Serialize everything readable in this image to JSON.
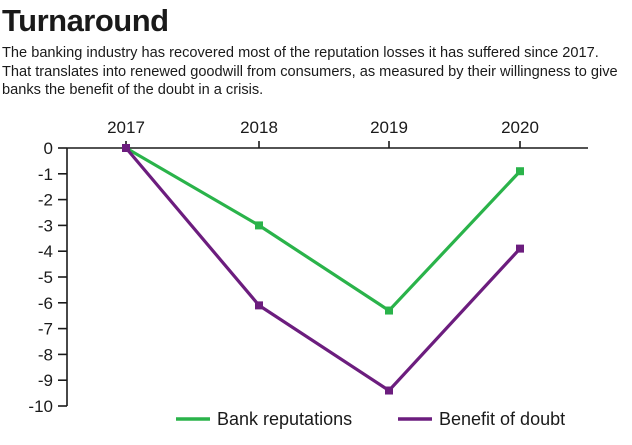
{
  "header": {
    "title": "Turnaround",
    "subtitle": "The banking industry has recovered most of the reputation losses it has suffered since 2017. That translates into renewed goodwill from consumers, as measured by their willingness to give banks the benefit of the doubt in a crisis."
  },
  "chart_data": {
    "type": "line",
    "x": [
      "2017",
      "2018",
      "2019",
      "2020"
    ],
    "x_axis_position": "top",
    "ylim": [
      -10,
      0
    ],
    "y_ticks": [
      0,
      -1,
      -2,
      -3,
      -4,
      -5,
      -6,
      -7,
      -8,
      -9,
      -10
    ],
    "grid": false,
    "legend_position": "bottom-right",
    "series": [
      {
        "name": "Bank reputations",
        "values": [
          0,
          -3.0,
          -6.3,
          -0.9
        ],
        "color": "#2ab34a"
      },
      {
        "name": "Benefit of doubt",
        "values": [
          0,
          -6.1,
          -9.4,
          -3.9
        ],
        "color": "#6c1d7e"
      }
    ]
  }
}
